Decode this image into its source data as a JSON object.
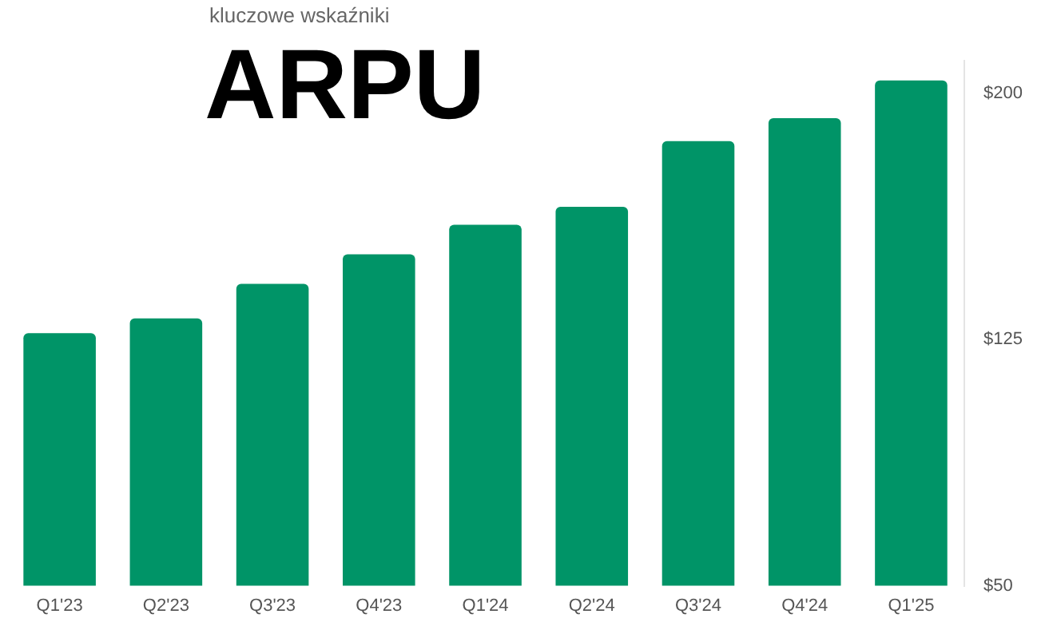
{
  "chart_data": {
    "type": "bar",
    "title": "ARPU",
    "subtitle": "kluczowe wskaźniki",
    "categories": [
      "Q1'23",
      "Q2'23",
      "Q3'23",
      "Q4'23",
      "Q1'24",
      "Q2'24",
      "Q3'24",
      "Q4'24",
      "Q1'25"
    ],
    "values": [
      127,
      131.5,
      142,
      151,
      160,
      165.5,
      185.5,
      192.5,
      204
    ],
    "color": "#009467",
    "ylim": [
      50,
      210
    ],
    "yticks": [
      {
        "value": 50,
        "label": "$50"
      },
      {
        "value": 125,
        "label": "$125"
      },
      {
        "value": 200,
        "label": "$200"
      }
    ],
    "grid": false,
    "legend": false
  }
}
